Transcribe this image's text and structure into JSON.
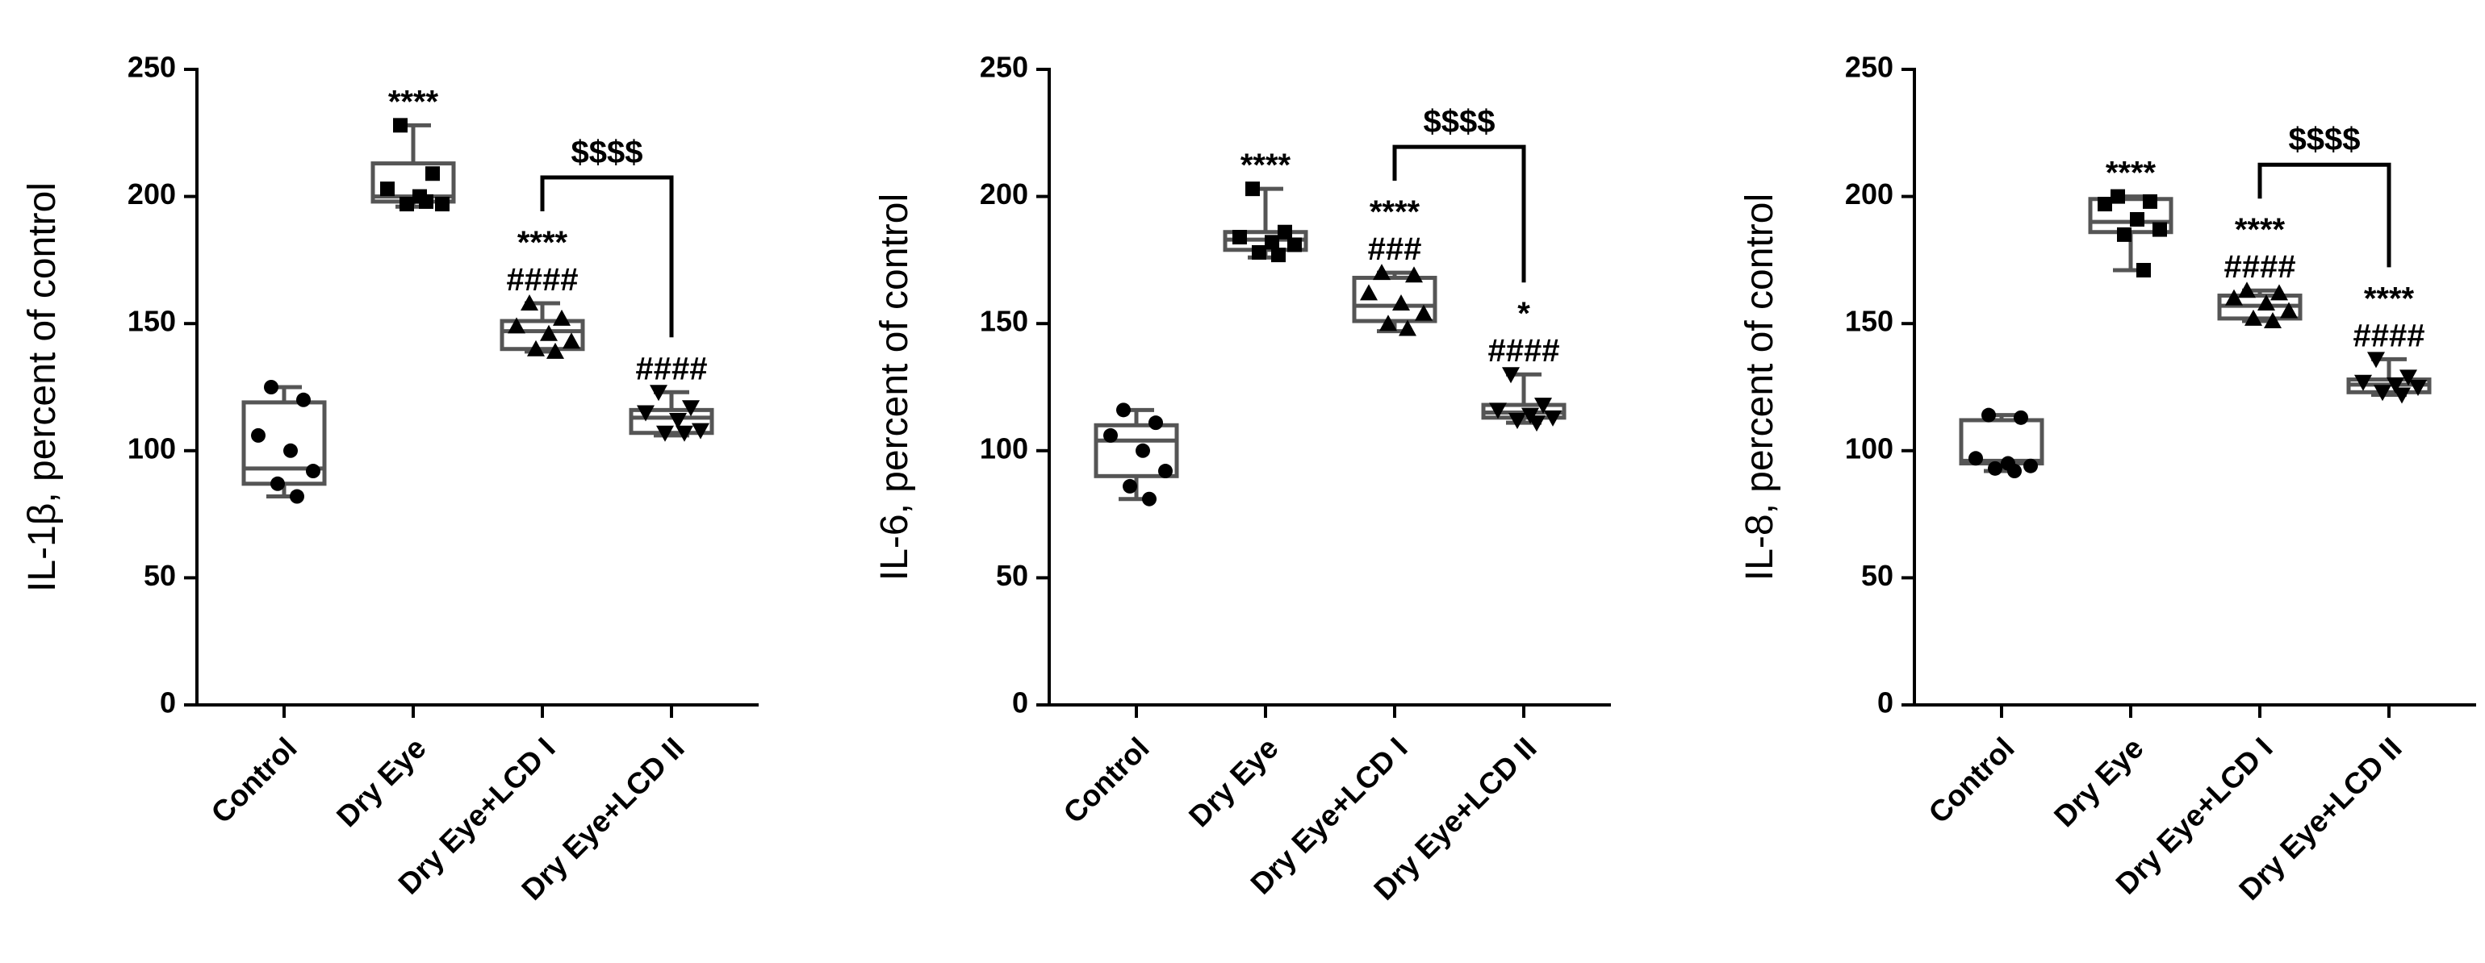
{
  "chart_data": [
    {
      "type": "box",
      "y_label": "IL-1β, percent of control",
      "categories": [
        "Control",
        "Dry Eye",
        "Dry Eye+LCD I",
        "Dry Eye+LCD II"
      ],
      "boxes": [
        [
          82,
          87,
          93,
          119,
          125
        ],
        [
          196,
          198,
          200,
          213,
          228
        ],
        [
          139,
          140,
          147,
          151,
          158
        ],
        [
          106,
          107,
          113,
          116,
          123
        ]
      ],
      "points": [
        [
          125,
          120,
          106,
          100,
          92,
          87,
          82
        ],
        [
          228,
          209,
          203,
          200,
          197,
          197,
          198
        ],
        [
          158,
          152,
          149,
          146,
          143,
          140,
          139
        ],
        [
          123,
          117,
          115,
          112,
          108,
          107,
          107
        ]
      ],
      "marker_shapes": [
        "circle",
        "square",
        "triangle",
        "triangle-down"
      ],
      "significance": [
        null,
        [
          "****"
        ],
        [
          "****",
          "####"
        ],
        [
          "####"
        ]
      ],
      "comparison": {
        "pair": [
          2,
          3
        ],
        "label": "$$$$"
      },
      "ylim": [
        0,
        250
      ],
      "yticks": [
        0,
        50,
        100,
        150,
        200,
        250
      ],
      "color": "#555555"
    },
    {
      "type": "box",
      "y_label": "IL-6, percent of control",
      "categories": [
        "Control",
        "Dry Eye",
        "Dry Eye+LCD I",
        "Dry Eye+LCD II"
      ],
      "boxes": [
        [
          81,
          90,
          104,
          110,
          116
        ],
        [
          176,
          179,
          183,
          186,
          203
        ],
        [
          147,
          151,
          157,
          168,
          170
        ],
        [
          111,
          113,
          115,
          118,
          130
        ]
      ],
      "points": [
        [
          116,
          111,
          106,
          100,
          92,
          86,
          81
        ],
        [
          203,
          186,
          184,
          182,
          181,
          178,
          177
        ],
        [
          170,
          169,
          162,
          158,
          154,
          150,
          148
        ],
        [
          130,
          118,
          116,
          114,
          113,
          112,
          111
        ]
      ],
      "marker_shapes": [
        "circle",
        "square",
        "triangle",
        "triangle-down"
      ],
      "significance": [
        null,
        [
          "****"
        ],
        [
          "****",
          "###"
        ],
        [
          "*",
          "####"
        ]
      ],
      "comparison": {
        "pair": [
          2,
          3
        ],
        "label": "$$$$"
      },
      "ylim": [
        0,
        250
      ],
      "yticks": [
        0,
        50,
        100,
        150,
        200,
        250
      ],
      "color": "#555555"
    },
    {
      "type": "box",
      "y_label": "IL-8, percent of control",
      "categories": [
        "Control",
        "Dry Eye",
        "Dry Eye+LCD I",
        "Dry Eye+LCD II"
      ],
      "boxes": [
        [
          92,
          95,
          96,
          112,
          114
        ],
        [
          171,
          186,
          190,
          199,
          200
        ],
        [
          151,
          152,
          157,
          161,
          163
        ],
        [
          122,
          123,
          126,
          128,
          136
        ]
      ],
      "points": [
        [
          114,
          113,
          97,
          95,
          94,
          93,
          92
        ],
        [
          200,
          198,
          197,
          191,
          187,
          185,
          171
        ],
        [
          163,
          162,
          160,
          158,
          155,
          152,
          151
        ],
        [
          136,
          129,
          127,
          126,
          125,
          123,
          122
        ]
      ],
      "marker_shapes": [
        "circle",
        "square",
        "triangle",
        "triangle-down"
      ],
      "significance": [
        null,
        [
          "****"
        ],
        [
          "****",
          "####"
        ],
        [
          "****",
          "####"
        ]
      ],
      "comparison": {
        "pair": [
          2,
          3
        ],
        "label": "$$$$"
      },
      "ylim": [
        0,
        250
      ],
      "yticks": [
        0,
        50,
        100,
        150,
        200,
        250
      ],
      "color": "#555555"
    }
  ]
}
